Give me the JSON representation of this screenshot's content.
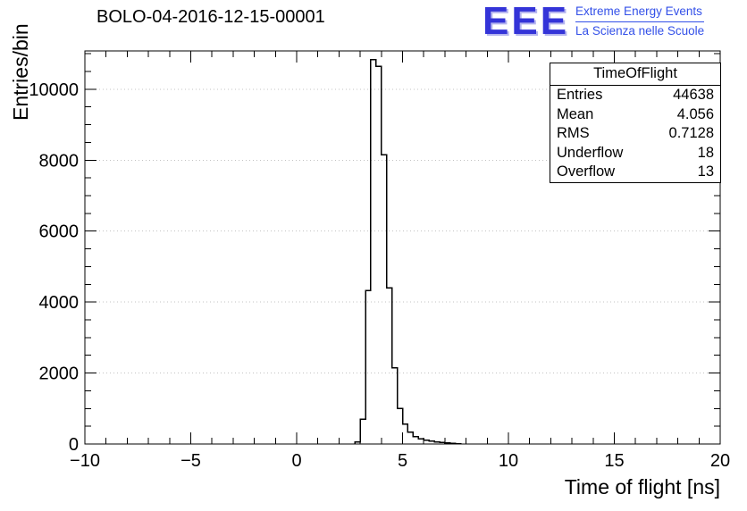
{
  "title": "BOLO-04-2016-12-15-00001",
  "logo": {
    "text": "EEE",
    "line1": "Extreme Energy Events",
    "line2": "La Scienza nelle Scuole",
    "color": "#3434d8"
  },
  "stats": {
    "title": "TimeOfFlight",
    "rows": [
      {
        "label": "Entries",
        "value": "44638"
      },
      {
        "label": "Mean",
        "value": "4.056"
      },
      {
        "label": "RMS",
        "value": "0.7128"
      },
      {
        "label": "Underflow",
        "value": "18"
      },
      {
        "label": "Overflow",
        "value": "13"
      }
    ]
  },
  "chart_data": {
    "type": "bar",
    "subtype": "step-histogram",
    "title": "BOLO-04-2016-12-15-00001",
    "xlabel": "Time of flight [ns]",
    "ylabel": "Entries/bin",
    "xlim": [
      -10,
      20
    ],
    "ylim": [
      0,
      11080
    ],
    "x_major_ticks": [
      -10,
      -5,
      0,
      5,
      10,
      15,
      20
    ],
    "x_minor_step": 1,
    "y_major_ticks": [
      0,
      2000,
      4000,
      6000,
      8000,
      10000
    ],
    "y_minor_step": 500,
    "grid": "horizontal-dotted",
    "legend": "none",
    "bin_width": 0.25,
    "bins": [
      {
        "x": 2.75,
        "count": 60
      },
      {
        "x": 3.0,
        "count": 700
      },
      {
        "x": 3.25,
        "count": 4330
      },
      {
        "x": 3.5,
        "count": 10830
      },
      {
        "x": 3.75,
        "count": 10650
      },
      {
        "x": 4.0,
        "count": 8150
      },
      {
        "x": 4.25,
        "count": 4400
      },
      {
        "x": 4.5,
        "count": 2150
      },
      {
        "x": 4.75,
        "count": 1000
      },
      {
        "x": 5.0,
        "count": 560
      },
      {
        "x": 5.25,
        "count": 330
      },
      {
        "x": 5.5,
        "count": 210
      },
      {
        "x": 5.75,
        "count": 150
      },
      {
        "x": 6.0,
        "count": 110
      },
      {
        "x": 6.25,
        "count": 80
      },
      {
        "x": 6.5,
        "count": 60
      },
      {
        "x": 6.75,
        "count": 45
      },
      {
        "x": 7.0,
        "count": 30
      },
      {
        "x": 7.25,
        "count": 20
      },
      {
        "x": 7.5,
        "count": 10
      }
    ],
    "stats_summary": {
      "entries": 44638,
      "mean": 4.056,
      "rms": 0.7128,
      "underflow": 18,
      "overflow": 13
    }
  }
}
